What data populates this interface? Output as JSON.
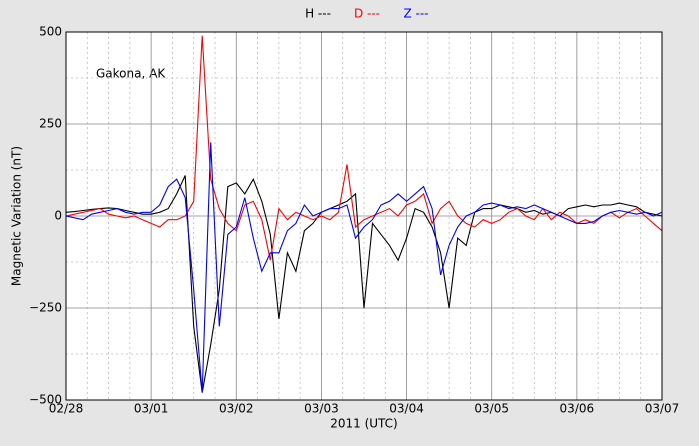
{
  "chart_data": {
    "type": "line",
    "annotation": "Gakona, AK",
    "xlabel": "2011 (UTC)",
    "ylabel": "Magnetic Variation (nT)",
    "xlim": [
      0,
      7
    ],
    "ylim": [
      -500,
      500
    ],
    "xticks": [
      {
        "value": 0,
        "label": "02/28"
      },
      {
        "value": 1,
        "label": "03/01"
      },
      {
        "value": 2,
        "label": "03/02"
      },
      {
        "value": 3,
        "label": "03/03"
      },
      {
        "value": 4,
        "label": "03/04"
      },
      {
        "value": 5,
        "label": "03/05"
      },
      {
        "value": 6,
        "label": "03/06"
      },
      {
        "value": 7,
        "label": "03/07"
      }
    ],
    "yticks": [
      {
        "value": -500,
        "label": "−500"
      },
      {
        "value": -250,
        "label": "−250"
      },
      0,
      250,
      500
    ],
    "minor_xticks": [
      0.25,
      0.5,
      0.75,
      1.25,
      1.5,
      1.75,
      2.25,
      2.5,
      2.75,
      3.25,
      3.5,
      3.75,
      4.25,
      4.5,
      4.75,
      5.25,
      5.5,
      5.75,
      6.25,
      6.5,
      6.75
    ],
    "minor_yticks": [
      -375,
      -125,
      125,
      375
    ],
    "grid": true,
    "x": [
      0,
      0.1,
      0.2,
      0.3,
      0.4,
      0.5,
      0.6,
      0.7,
      0.8,
      0.9,
      1,
      1.1,
      1.2,
      1.3,
      1.4,
      1.5,
      1.6,
      1.7,
      1.8,
      1.9,
      2,
      2.1,
      2.2,
      2.3,
      2.4,
      2.5,
      2.6,
      2.7,
      2.8,
      2.9,
      3,
      3.1,
      3.2,
      3.3,
      3.4,
      3.5,
      3.6,
      3.7,
      3.8,
      3.9,
      4,
      4.1,
      4.2,
      4.3,
      4.4,
      4.5,
      4.6,
      4.7,
      4.8,
      4.9,
      5,
      5.1,
      5.2,
      5.3,
      5.4,
      5.5,
      5.6,
      5.7,
      5.8,
      5.9,
      6,
      6.1,
      6.2,
      6.3,
      6.4,
      6.5,
      6.6,
      6.7,
      6.8,
      6.9,
      7
    ],
    "series": [
      {
        "name": "H ---",
        "color": "#000000",
        "values": [
          10,
          12,
          15,
          18,
          20,
          22,
          20,
          15,
          10,
          5,
          5,
          10,
          20,
          60,
          110,
          -300,
          -480,
          -350,
          -200,
          80,
          90,
          60,
          100,
          40,
          -50,
          -280,
          -100,
          -150,
          -40,
          -20,
          10,
          20,
          30,
          40,
          60,
          -250,
          -20,
          -50,
          -80,
          -120,
          -60,
          20,
          10,
          -30,
          -100,
          -250,
          -60,
          -80,
          10,
          20,
          20,
          30,
          25,
          20,
          10,
          15,
          5,
          10,
          0,
          20,
          25,
          30,
          25,
          30,
          30,
          35,
          30,
          25,
          10,
          5,
          0
        ]
      },
      {
        "name": "D ---",
        "color": "#ff0000",
        "values": [
          0,
          5,
          10,
          15,
          20,
          5,
          0,
          -5,
          0,
          -10,
          -20,
          -30,
          -10,
          -10,
          0,
          40,
          490,
          100,
          20,
          -20,
          -40,
          30,
          40,
          -10,
          -120,
          20,
          -10,
          10,
          0,
          -10,
          0,
          -10,
          10,
          140,
          -30,
          -10,
          0,
          10,
          20,
          0,
          30,
          40,
          60,
          -20,
          20,
          40,
          0,
          -20,
          -30,
          -10,
          -20,
          -10,
          10,
          20,
          0,
          -10,
          20,
          -10,
          10,
          0,
          -20,
          -10,
          -20,
          0,
          10,
          -5,
          10,
          20,
          0,
          -20,
          -40
        ]
      },
      {
        "name": "Z ---",
        "color": "#0000ff",
        "values": [
          0,
          -5,
          -10,
          5,
          10,
          15,
          20,
          10,
          5,
          10,
          10,
          30,
          80,
          100,
          50,
          -200,
          -480,
          200,
          -300,
          -50,
          -30,
          50,
          -60,
          -150,
          -100,
          -100,
          -40,
          -20,
          30,
          0,
          10,
          20,
          20,
          30,
          -60,
          -30,
          -10,
          30,
          40,
          60,
          40,
          60,
          80,
          20,
          -160,
          -80,
          -30,
          0,
          10,
          30,
          35,
          30,
          20,
          25,
          20,
          30,
          20,
          10,
          0,
          -10,
          -20,
          -20,
          -15,
          0,
          10,
          15,
          10,
          5,
          10,
          0,
          10
        ]
      }
    ]
  }
}
